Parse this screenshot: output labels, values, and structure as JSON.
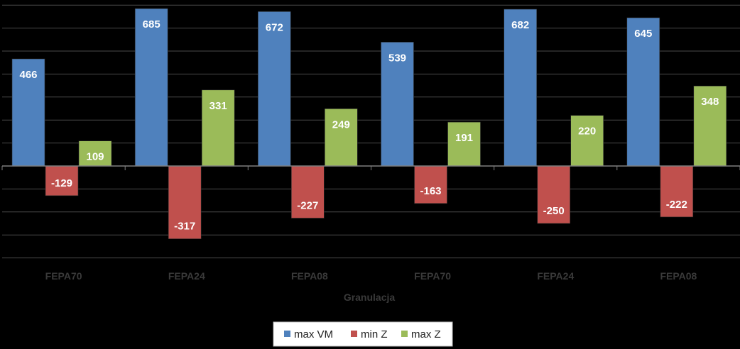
{
  "chart_data": {
    "type": "bar",
    "categories": [
      "FEPA70",
      "FEPA24",
      "FEPA08",
      "FEPA70",
      "FEPA24",
      "FEPA08"
    ],
    "series": [
      {
        "name": "max VM",
        "color": "#4f81bd",
        "values": [
          466,
          685,
          672,
          539,
          682,
          645
        ]
      },
      {
        "name": "min Z",
        "color": "#c0504d",
        "values": [
          -129,
          -317,
          -227,
          -163,
          -250,
          -222
        ]
      },
      {
        "name": "max Z",
        "color": "#9bbb59",
        "values": [
          109,
          331,
          249,
          191,
          220,
          348
        ]
      }
    ],
    "xlabel": "Granulacja",
    "ylabel": "",
    "ylim": [
      -400,
      700
    ],
    "grid": true,
    "legend_position": "bottom"
  }
}
